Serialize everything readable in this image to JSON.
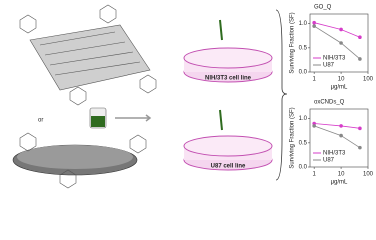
{
  "labels": {
    "or": "or",
    "cell_line_top": "NIH/3T3 cell line",
    "cell_line_bottom": "U87 cell line"
  },
  "chart_data": [
    {
      "type": "line",
      "title": "GO_Q",
      "xlabel": "μg/mL",
      "ylabel": "Surviving Fraction (SF)",
      "x": [
        1,
        10,
        50
      ],
      "log_x": true,
      "xlim": [
        0.7,
        100
      ],
      "xticks": [
        1,
        10,
        100
      ],
      "ylim": [
        0,
        1.2
      ],
      "yticks": [
        {
          "value": 0,
          "label": "0.0"
        },
        {
          "value": 0.5,
          "label": "0.5"
        },
        {
          "value": 1,
          "label": "1.0"
        }
      ],
      "legend": "lower left",
      "series": [
        {
          "name": "NIH/3T3",
          "color": "#d63cc9",
          "values": [
            1.02,
            0.88,
            0.72
          ]
        },
        {
          "name": "U87",
          "color": "#888888",
          "values": [
            0.95,
            0.6,
            0.27
          ]
        }
      ]
    },
    {
      "type": "line",
      "title": "oxCNDs_Q",
      "xlabel": "μg/mL",
      "ylabel": "Surviving Fraction (SF)",
      "x": [
        1,
        10,
        50
      ],
      "log_x": true,
      "xlim": [
        0.7,
        100
      ],
      "xticks": [
        1,
        10,
        100
      ],
      "ylim": [
        0,
        1.2
      ],
      "yticks": [
        {
          "value": 0,
          "label": "0.0"
        },
        {
          "value": 0.5,
          "label": "0.5"
        },
        {
          "value": 1,
          "label": "1.0"
        }
      ],
      "legend": "lower left",
      "series": [
        {
          "name": "NIH/3T3",
          "color": "#d63cc9",
          "values": [
            0.9,
            0.85,
            0.8
          ]
        },
        {
          "name": "U87",
          "color": "#888888",
          "values": [
            0.85,
            0.65,
            0.4
          ]
        }
      ]
    }
  ]
}
